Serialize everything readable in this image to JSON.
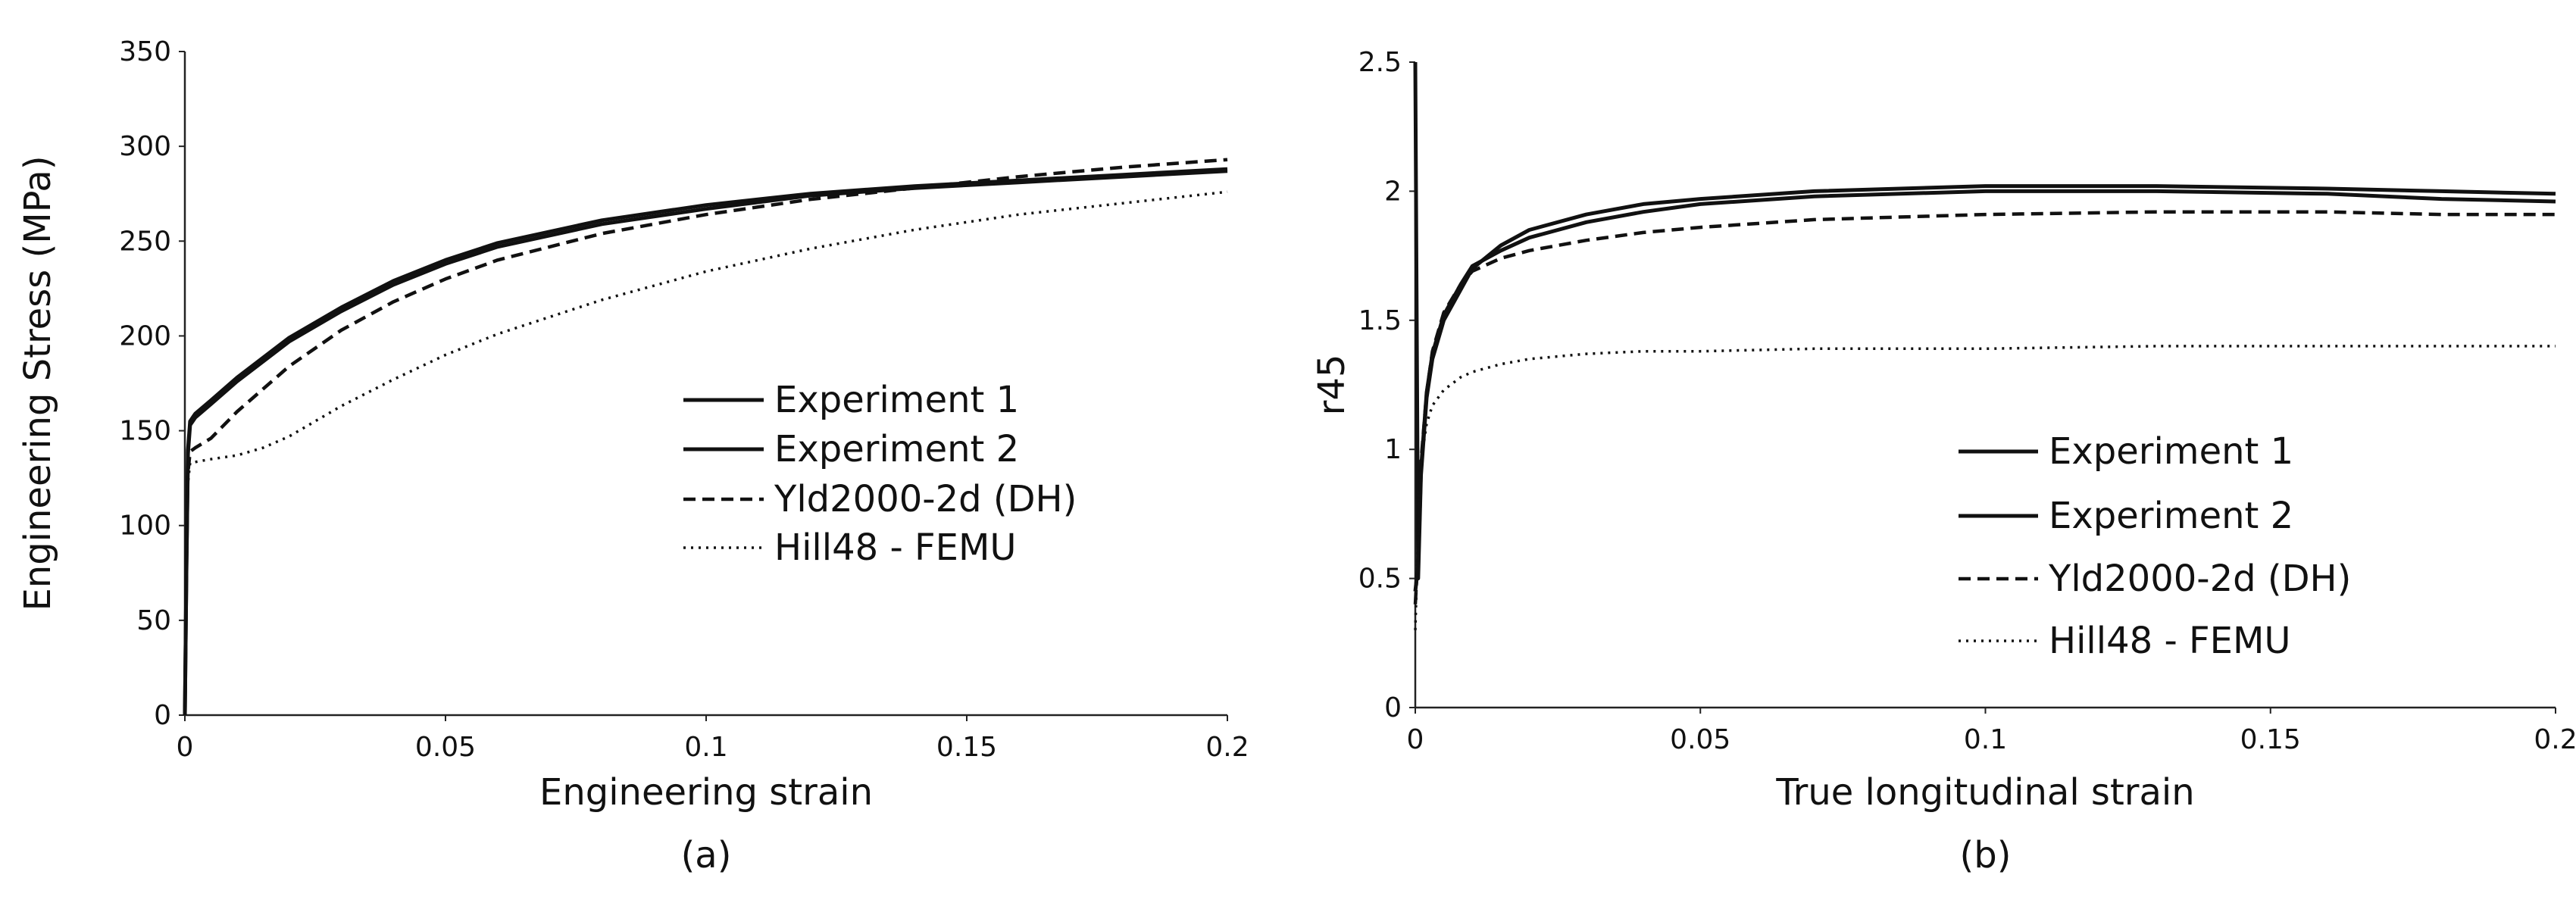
{
  "chart_data": [
    {
      "type": "line",
      "panel_label": "(a)",
      "xlabel": "Engineering strain",
      "ylabel": "Engineering Stress (MPa)",
      "xlim": [
        0,
        0.2
      ],
      "ylim": [
        0,
        350
      ],
      "xticks": [
        0,
        0.05,
        0.1,
        0.15,
        0.2
      ],
      "xtick_labels": [
        "0",
        "0.05",
        "0.1",
        "0.15",
        "0.2"
      ],
      "yticks": [
        0,
        50,
        100,
        150,
        200,
        250,
        300,
        350
      ],
      "ytick_labels": [
        "0",
        "50",
        "100",
        "150",
        "200",
        "250",
        "300",
        "350"
      ],
      "grid": false,
      "legend_position": "center-right",
      "series": [
        {
          "name": "Experiment 1",
          "style": "solid",
          "x": [
            0,
            0.0003,
            0.0006,
            0.001,
            0.002,
            0.005,
            0.01,
            0.02,
            0.03,
            0.04,
            0.05,
            0.06,
            0.08,
            0.1,
            0.12,
            0.14,
            0.16,
            0.18,
            0.2
          ],
          "y": [
            0,
            80,
            140,
            155,
            159,
            166,
            178,
            199,
            215,
            229,
            240,
            249,
            261,
            269,
            275,
            279,
            282,
            285,
            288
          ]
        },
        {
          "name": "Experiment 2",
          "style": "solid",
          "x": [
            0,
            0.0003,
            0.0006,
            0.001,
            0.002,
            0.005,
            0.01,
            0.02,
            0.03,
            0.04,
            0.05,
            0.06,
            0.08,
            0.1,
            0.12,
            0.14,
            0.16,
            0.18,
            0.2
          ],
          "y": [
            0,
            78,
            138,
            153,
            157,
            164,
            176,
            197,
            213,
            227,
            238,
            247,
            259,
            267,
            274,
            278,
            281,
            284,
            287
          ]
        },
        {
          "name": "Yld2000-2d (DH)",
          "style": "dashed",
          "x": [
            0,
            0.0005,
            0.001,
            0.002,
            0.005,
            0.01,
            0.02,
            0.03,
            0.04,
            0.05,
            0.06,
            0.08,
            0.1,
            0.12,
            0.14,
            0.16,
            0.18,
            0.2
          ],
          "y": [
            0,
            125,
            139,
            141,
            146,
            160,
            184,
            203,
            218,
            230,
            240,
            254,
            264,
            272,
            278,
            284,
            289,
            293
          ]
        },
        {
          "name": "Hill48 - FEMU",
          "style": "dotted",
          "x": [
            0,
            0.0005,
            0.001,
            0.005,
            0.01,
            0.015,
            0.02,
            0.03,
            0.04,
            0.05,
            0.06,
            0.08,
            0.1,
            0.12,
            0.14,
            0.16,
            0.18,
            0.2
          ],
          "y": [
            0,
            120,
            133,
            135,
            137,
            141,
            147,
            163,
            177,
            190,
            201,
            219,
            234,
            246,
            256,
            264,
            270,
            276
          ]
        }
      ]
    },
    {
      "type": "line",
      "panel_label": "(b)",
      "xlabel": "True longitudinal strain",
      "ylabel": "r45",
      "xlim": [
        0,
        0.2
      ],
      "ylim": [
        0,
        2.5
      ],
      "xticks": [
        0,
        0.05,
        0.1,
        0.15,
        0.2
      ],
      "xtick_labels": [
        "0",
        "0.05",
        "0.1",
        "0.15",
        "0.2"
      ],
      "yticks": [
        0,
        0.5,
        1,
        1.5,
        2,
        2.5
      ],
      "ytick_labels": [
        "0",
        "0.5",
        "1",
        "1.5",
        "2",
        "2.5"
      ],
      "grid": false,
      "legend_position": "center-right",
      "series": [
        {
          "name": "Experiment 1",
          "style": "solid",
          "x": [
            0,
            0.0005,
            0.001,
            0.002,
            0.003,
            0.005,
            0.008,
            0.01,
            0.015,
            0.02,
            0.03,
            0.04,
            0.05,
            0.07,
            0.1,
            0.13,
            0.16,
            0.18,
            0.2
          ],
          "y": [
            2.5,
            0.5,
            0.9,
            1.2,
            1.35,
            1.5,
            1.62,
            1.7,
            1.79,
            1.85,
            1.91,
            1.95,
            1.97,
            2.0,
            2.02,
            2.02,
            2.01,
            2.0,
            1.99
          ]
        },
        {
          "name": "Experiment 2",
          "style": "solid",
          "x": [
            0,
            0.0005,
            0.001,
            0.002,
            0.003,
            0.005,
            0.008,
            0.01,
            0.015,
            0.02,
            0.03,
            0.04,
            0.05,
            0.07,
            0.1,
            0.13,
            0.16,
            0.18,
            0.2
          ],
          "y": [
            0.45,
            0.55,
            0.92,
            1.22,
            1.37,
            1.52,
            1.64,
            1.71,
            1.77,
            1.82,
            1.88,
            1.92,
            1.95,
            1.98,
            2.0,
            2.0,
            1.99,
            1.97,
            1.96
          ]
        },
        {
          "name": "Yld2000-2d (DH)",
          "style": "dashed",
          "x": [
            0,
            0.0005,
            0.001,
            0.002,
            0.003,
            0.005,
            0.008,
            0.01,
            0.015,
            0.02,
            0.03,
            0.04,
            0.05,
            0.07,
            0.1,
            0.13,
            0.16,
            0.18,
            0.2
          ],
          "y": [
            0.4,
            0.6,
            0.95,
            1.22,
            1.38,
            1.53,
            1.64,
            1.69,
            1.74,
            1.77,
            1.81,
            1.84,
            1.86,
            1.89,
            1.91,
            1.92,
            1.92,
            1.91,
            1.91
          ]
        },
        {
          "name": "Hill48 - FEMU",
          "style": "dotted",
          "x": [
            0,
            0.0005,
            0.001,
            0.002,
            0.003,
            0.005,
            0.008,
            0.01,
            0.015,
            0.02,
            0.03,
            0.04,
            0.05,
            0.07,
            0.1,
            0.13,
            0.16,
            0.18,
            0.2
          ],
          "y": [
            0.3,
            0.7,
            0.95,
            1.1,
            1.17,
            1.23,
            1.28,
            1.3,
            1.33,
            1.35,
            1.37,
            1.38,
            1.38,
            1.39,
            1.39,
            1.4,
            1.4,
            1.4,
            1.4
          ]
        }
      ]
    }
  ]
}
